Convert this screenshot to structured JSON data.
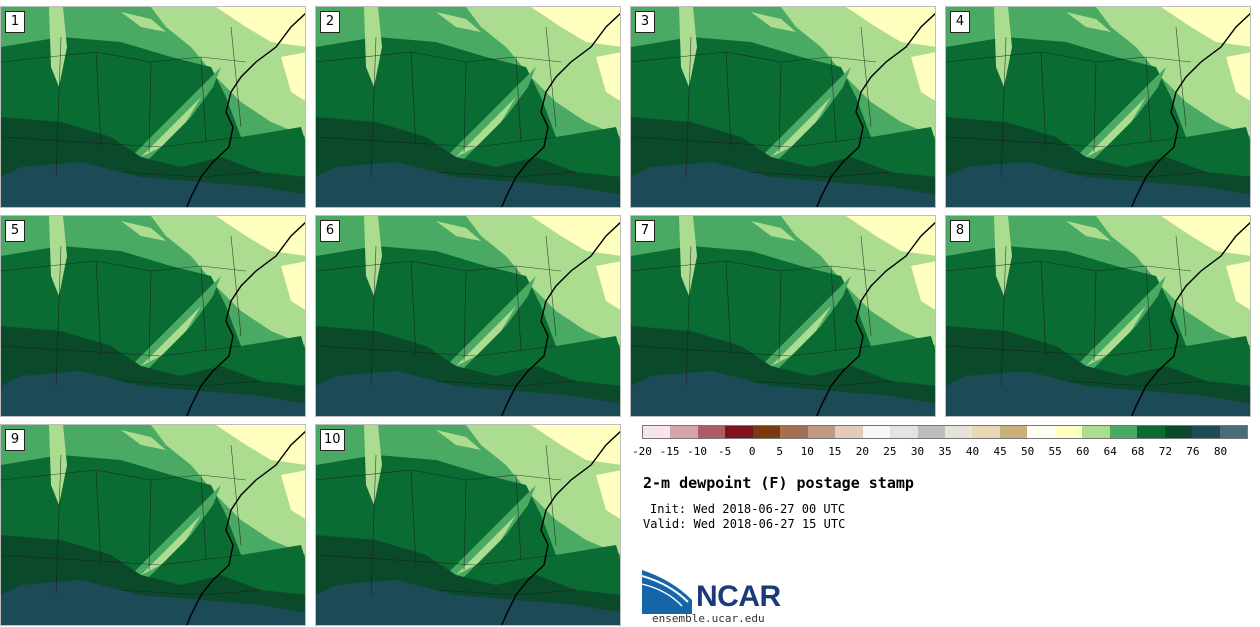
{
  "members": [
    "1",
    "2",
    "3",
    "4",
    "5",
    "6",
    "7",
    "8",
    "9",
    "10"
  ],
  "colorbar": {
    "colors": [
      "#f7e6e9",
      "#d6a3ad",
      "#ad5d66",
      "#7f1420",
      "#7b3b10",
      "#a56f51",
      "#c19884",
      "#e2cabc",
      "#f7f7f7",
      "#e3e3e3",
      "#bdbdbd",
      "#e6e2da",
      "#e7d8b4",
      "#c9b27a",
      "#fffff0",
      "#ffffbf",
      "#abdc90",
      "#4aaa63",
      "#0a6b33",
      "#0a4a2a",
      "#1c4a57",
      "#4d6b75"
    ],
    "ticks": [
      "-20",
      "-15",
      "-10",
      "-5",
      "0",
      "5",
      "10",
      "15",
      "20",
      "25",
      "30",
      "35",
      "40",
      "45",
      "50",
      "55",
      "60",
      "64",
      "68",
      "72",
      "76",
      "80"
    ]
  },
  "title": "2-m dewpoint (F) postage stamp",
  "init": "Init: Wed 2018-06-27 00 UTC",
  "valid": "Valid: Wed 2018-06-27 15 UTC",
  "logo_text": "NCAR",
  "url": "ensemble.ucar.edu"
}
